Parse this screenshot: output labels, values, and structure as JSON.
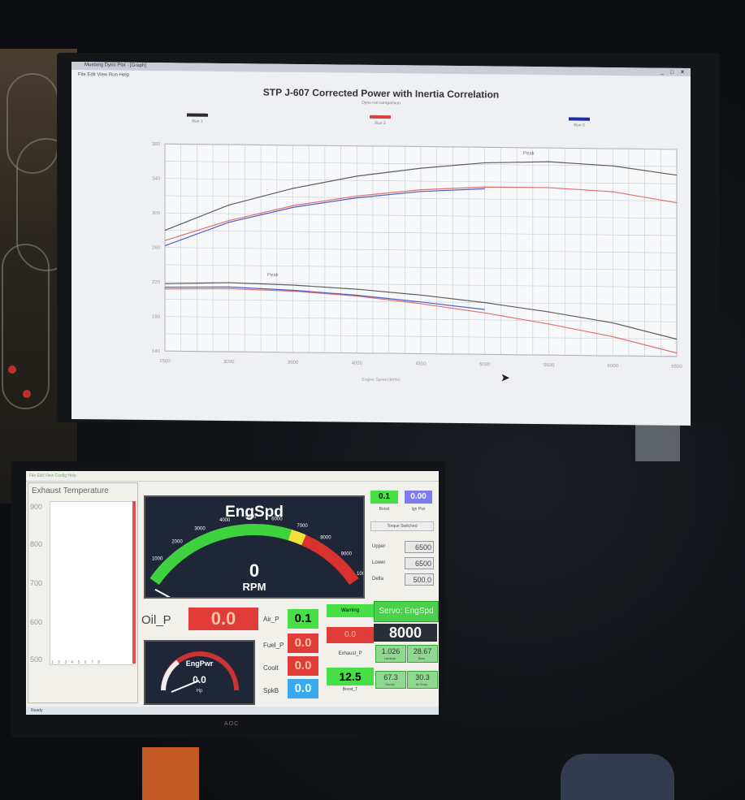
{
  "top_screen": {
    "window_title": "Mustang Dyno Plot - [Graph]",
    "menu": "File   Edit   View   Run   Help",
    "chart_title": "STP J-607 Corrected Power with Inertia Correlation",
    "chart_subtitle": "Dyno run comparison",
    "legend": [
      {
        "label": "Run 1",
        "color": "#2b2b2b"
      },
      {
        "label": "Run 2",
        "color": "#e0413c"
      },
      {
        "label": "Run 3",
        "color": "#1b2cb0"
      }
    ],
    "peak_annotation_top": "Peak",
    "peak_annotation_bottom": "Peak",
    "x_axis_label": "Engine Speed (RPM)",
    "colors": {
      "grid": "#c8ccd2",
      "background": "#eef0f3"
    }
  },
  "chart_data": {
    "type": "line",
    "x": [
      2500,
      3000,
      3500,
      4000,
      4500,
      5000,
      5500,
      6000,
      6500
    ],
    "series": [
      {
        "name": "Run 1",
        "group": "upper",
        "values": [
          280,
          310,
          330,
          345,
          355,
          362,
          364,
          360,
          350
        ]
      },
      {
        "name": "Run 2",
        "group": "upper",
        "values": [
          268,
          292,
          310,
          322,
          330,
          334,
          334,
          330,
          318
        ]
      },
      {
        "name": "Run 3",
        "group": "upper",
        "values": [
          262,
          290,
          308,
          320,
          328,
          332,
          null,
          null,
          null
        ]
      },
      {
        "name": "Run 1",
        "group": "lower",
        "values": [
          218,
          220,
          218,
          214,
          208,
          200,
          190,
          178,
          160
        ]
      },
      {
        "name": "Run 2",
        "group": "lower",
        "values": [
          212,
          213,
          211,
          206,
          198,
          188,
          176,
          162,
          144
        ]
      },
      {
        "name": "Run 3",
        "group": "lower",
        "values": [
          214,
          215,
          212,
          207,
          200,
          192,
          null,
          null,
          null
        ]
      }
    ],
    "ylim": [
      140,
      380
    ],
    "grid": true,
    "legend_position": "top"
  },
  "bottom_screen": {
    "menu": "File   Edit   View   Config   Help",
    "exhaust_title": "Exhaust Temperature",
    "exhaust_ticks": [
      "900",
      "800",
      "700",
      "600",
      "500"
    ],
    "exhaust_bars": "1 2 3 4 5 6 7 8",
    "gauge": {
      "title": "EngSpd",
      "value": "0",
      "unit": "RPM",
      "ticks": [
        "0",
        "1000",
        "2000",
        "3000",
        "4000",
        "5000",
        "6000",
        "7000",
        "8000",
        "9000",
        "10000"
      ]
    },
    "top_boxes": [
      {
        "value": "0.1",
        "label": "Boost",
        "color": "#46e046"
      },
      {
        "value": "0.00",
        "label": "Ign Pwr",
        "color": "#7d7df0"
      }
    ],
    "torque_switch": "Torque Switched",
    "settings": [
      {
        "label": "Upper",
        "value": "6500"
      },
      {
        "label": "Lower",
        "value": "6500"
      },
      {
        "label": "Delta",
        "value": "500.0"
      }
    ],
    "oil_p": {
      "label": "Oil_P",
      "value": "0.0"
    },
    "mini_gauge": {
      "title": "EngPwr",
      "value": "0.0",
      "unit": "Hp"
    },
    "sensors": [
      {
        "label": "Air_P",
        "value": "0.1",
        "color": "#46e046"
      },
      {
        "label": "Fuel_P",
        "value": "0.0",
        "color": "#e23c3a"
      },
      {
        "label": "Coolt",
        "value": "0.0",
        "color": "#e23c3a"
      },
      {
        "label": "SpkB",
        "value": "0.0",
        "color": "#3aa8f0"
      }
    ],
    "mid_items": [
      {
        "value": "Warning",
        "label": "",
        "color": "#46e046"
      },
      {
        "value": "0.0",
        "label": "",
        "color": "#e23c3a"
      },
      {
        "value": "",
        "label": "Exhaust_P",
        "color": "#ffffff"
      },
      {
        "value": "12.5",
        "label": "Boost_T",
        "color": "#46e046"
      }
    ],
    "servo": {
      "label": "Servo: EngSpd",
      "value": "8000"
    },
    "green_boxes": [
      {
        "value": "1.026",
        "label": "Lambda"
      },
      {
        "value": "28.67",
        "label": "Baro"
      },
      {
        "value": "67.3",
        "label": "Humid"
      },
      {
        "value": "30.3",
        "label": "AirTemp"
      }
    ],
    "status": "Ready",
    "brand": "AOC"
  }
}
